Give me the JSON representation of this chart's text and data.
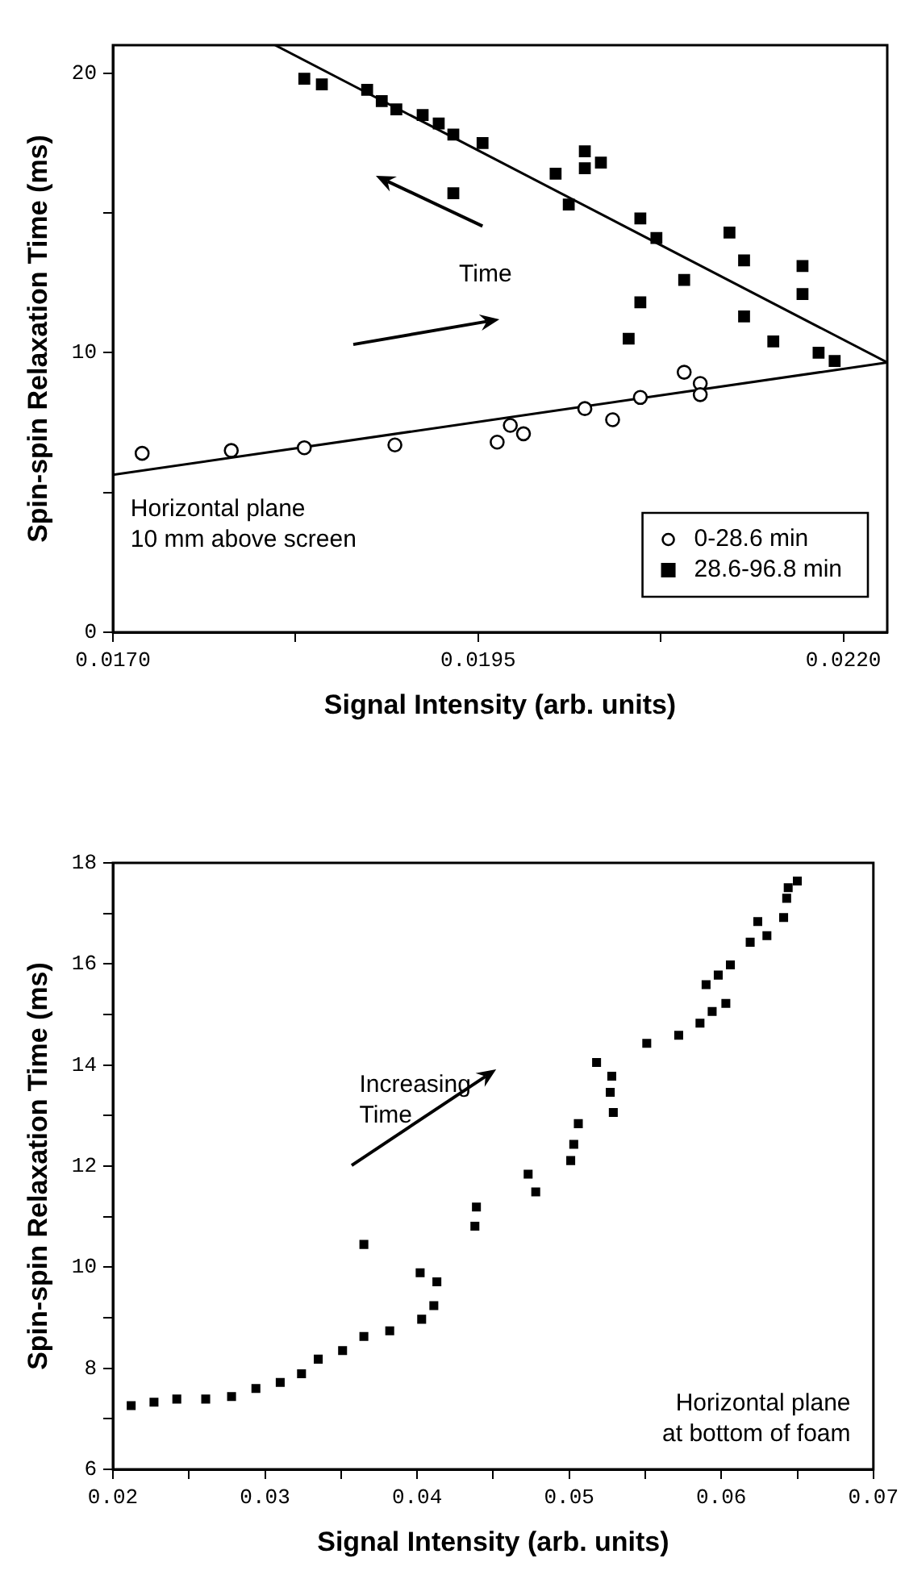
{
  "chart_data": [
    {
      "type": "scatter",
      "xlabel": "Signal Intensity (arb. units)",
      "ylabel": "Spin-spin Relaxation Time (ms)",
      "xlim": [
        0.017,
        0.0223
      ],
      "ylim": [
        0,
        21
      ],
      "xticks": [
        {
          "value": 0.017,
          "label": "0.0170"
        },
        {
          "value": 0.01825,
          "label": null
        },
        {
          "value": 0.0195,
          "label": "0.0195"
        },
        {
          "value": 0.02075,
          "label": null
        },
        {
          "value": 0.022,
          "label": "0.0220"
        }
      ],
      "yticks": [
        0,
        {
          "value": 5,
          "label": null
        },
        10,
        {
          "value": 15,
          "label": null
        },
        20
      ],
      "legend": "bottom right",
      "annotations": [
        "Time",
        "Horizontal plane\n10 mm above screen"
      ],
      "series": [
        {
          "name": "0-28.6 min",
          "color": "#000000",
          "marker": "circle",
          "x": [
            0.0172,
            0.01781,
            0.01831,
            0.01893,
            0.01963,
            0.01972,
            0.01981,
            0.02023,
            0.02042,
            0.02061,
            0.02091,
            0.02102,
            0.02102
          ],
          "values": [
            6.4,
            6.5,
            6.6,
            6.7,
            6.8,
            7.4,
            7.1,
            8.0,
            7.6,
            8.4,
            9.3,
            8.9,
            8.5
          ]
        },
        {
          "name": "28.6-96.8 min",
          "color": "#000000",
          "marker": "square",
          "x": [
            0.01831,
            0.01843,
            0.01874,
            0.01884,
            0.01894,
            0.01912,
            0.01923,
            0.01933,
            0.01933,
            0.01953,
            0.02003,
            0.02023,
            0.02023,
            0.02034,
            0.02012,
            0.02061,
            0.02072,
            0.02122,
            0.02132,
            0.02091,
            0.02172,
            0.02172,
            0.02061,
            0.02132,
            0.02053,
            0.02152,
            0.02183,
            0.02194
          ],
          "values": [
            19.8,
            19.6,
            19.4,
            19.0,
            18.7,
            18.5,
            18.2,
            17.8,
            15.7,
            17.5,
            16.4,
            17.2,
            16.6,
            16.8,
            15.3,
            14.8,
            14.1,
            14.3,
            13.3,
            12.6,
            13.1,
            12.1,
            11.8,
            11.3,
            10.5,
            10.4,
            10.0,
            9.7
          ]
        },
        {
          "type": "line",
          "color": "#000000",
          "marker": "none",
          "x": [
            0.01811,
            0.0223
          ],
          "values": [
            21,
            9.65
          ]
        },
        {
          "type": "line",
          "color": "#000000",
          "marker": "none",
          "x": [
            0.017,
            0.0223
          ],
          "values": [
            5.63,
            9.65
          ]
        }
      ]
    },
    {
      "type": "scatter",
      "xlabel": "Signal Intensity (arb. units)",
      "ylabel": "Spin-spin Relaxation Time (ms)",
      "xlim": [
        0.02,
        0.07
      ],
      "ylim": [
        6,
        18
      ],
      "xticks": [
        0.02,
        {
          "value": 0.025,
          "label": null
        },
        0.03,
        {
          "value": 0.035,
          "label": null
        },
        0.04,
        {
          "value": 0.045,
          "label": null
        },
        0.05,
        {
          "value": 0.055,
          "label": null
        },
        0.06,
        {
          "value": 0.065,
          "label": null
        },
        0.07
      ],
      "yticks": [
        6,
        {
          "value": 7,
          "label": null
        },
        8,
        {
          "value": 9,
          "label": null
        },
        10,
        {
          "value": 11,
          "label": null
        },
        12,
        {
          "value": 13,
          "label": null
        },
        14,
        {
          "value": 15,
          "label": null
        },
        16,
        {
          "value": 17,
          "label": null
        },
        18
      ],
      "annotations": [
        "Increasing\nTime",
        "Horizontal plane\nat bottom of foam"
      ],
      "series": [
        {
          "color": "#000000",
          "marker": "square",
          "x": [
            0.0212,
            0.0227,
            0.0242,
            0.0261,
            0.0278,
            0.0294,
            0.031,
            0.0324,
            0.0335,
            0.0351,
            0.0365,
            0.0382,
            0.0365,
            0.0403,
            0.0411,
            0.0402,
            0.0413,
            0.0438,
            0.0439,
            0.0473,
            0.0478,
            0.0501,
            0.0503,
            0.0506,
            0.0518,
            0.0528,
            0.0527,
            0.0529,
            0.0551,
            0.0572,
            0.0586,
            0.0594,
            0.0603,
            0.059,
            0.0598,
            0.0606,
            0.0619,
            0.0624,
            0.063,
            0.0641,
            0.0643,
            0.0644,
            0.065
          ],
          "values": [
            7.26,
            7.33,
            7.39,
            7.39,
            7.44,
            7.6,
            7.72,
            7.89,
            8.18,
            8.35,
            8.63,
            8.74,
            10.45,
            8.97,
            9.24,
            9.89,
            9.71,
            10.81,
            11.19,
            11.84,
            11.49,
            12.11,
            12.43,
            12.84,
            14.05,
            13.78,
            13.46,
            13.06,
            14.43,
            14.59,
            14.83,
            15.06,
            15.22,
            15.59,
            15.78,
            15.98,
            16.43,
            16.84,
            16.56,
            16.92,
            17.3,
            17.51,
            17.64
          ]
        }
      ]
    }
  ]
}
